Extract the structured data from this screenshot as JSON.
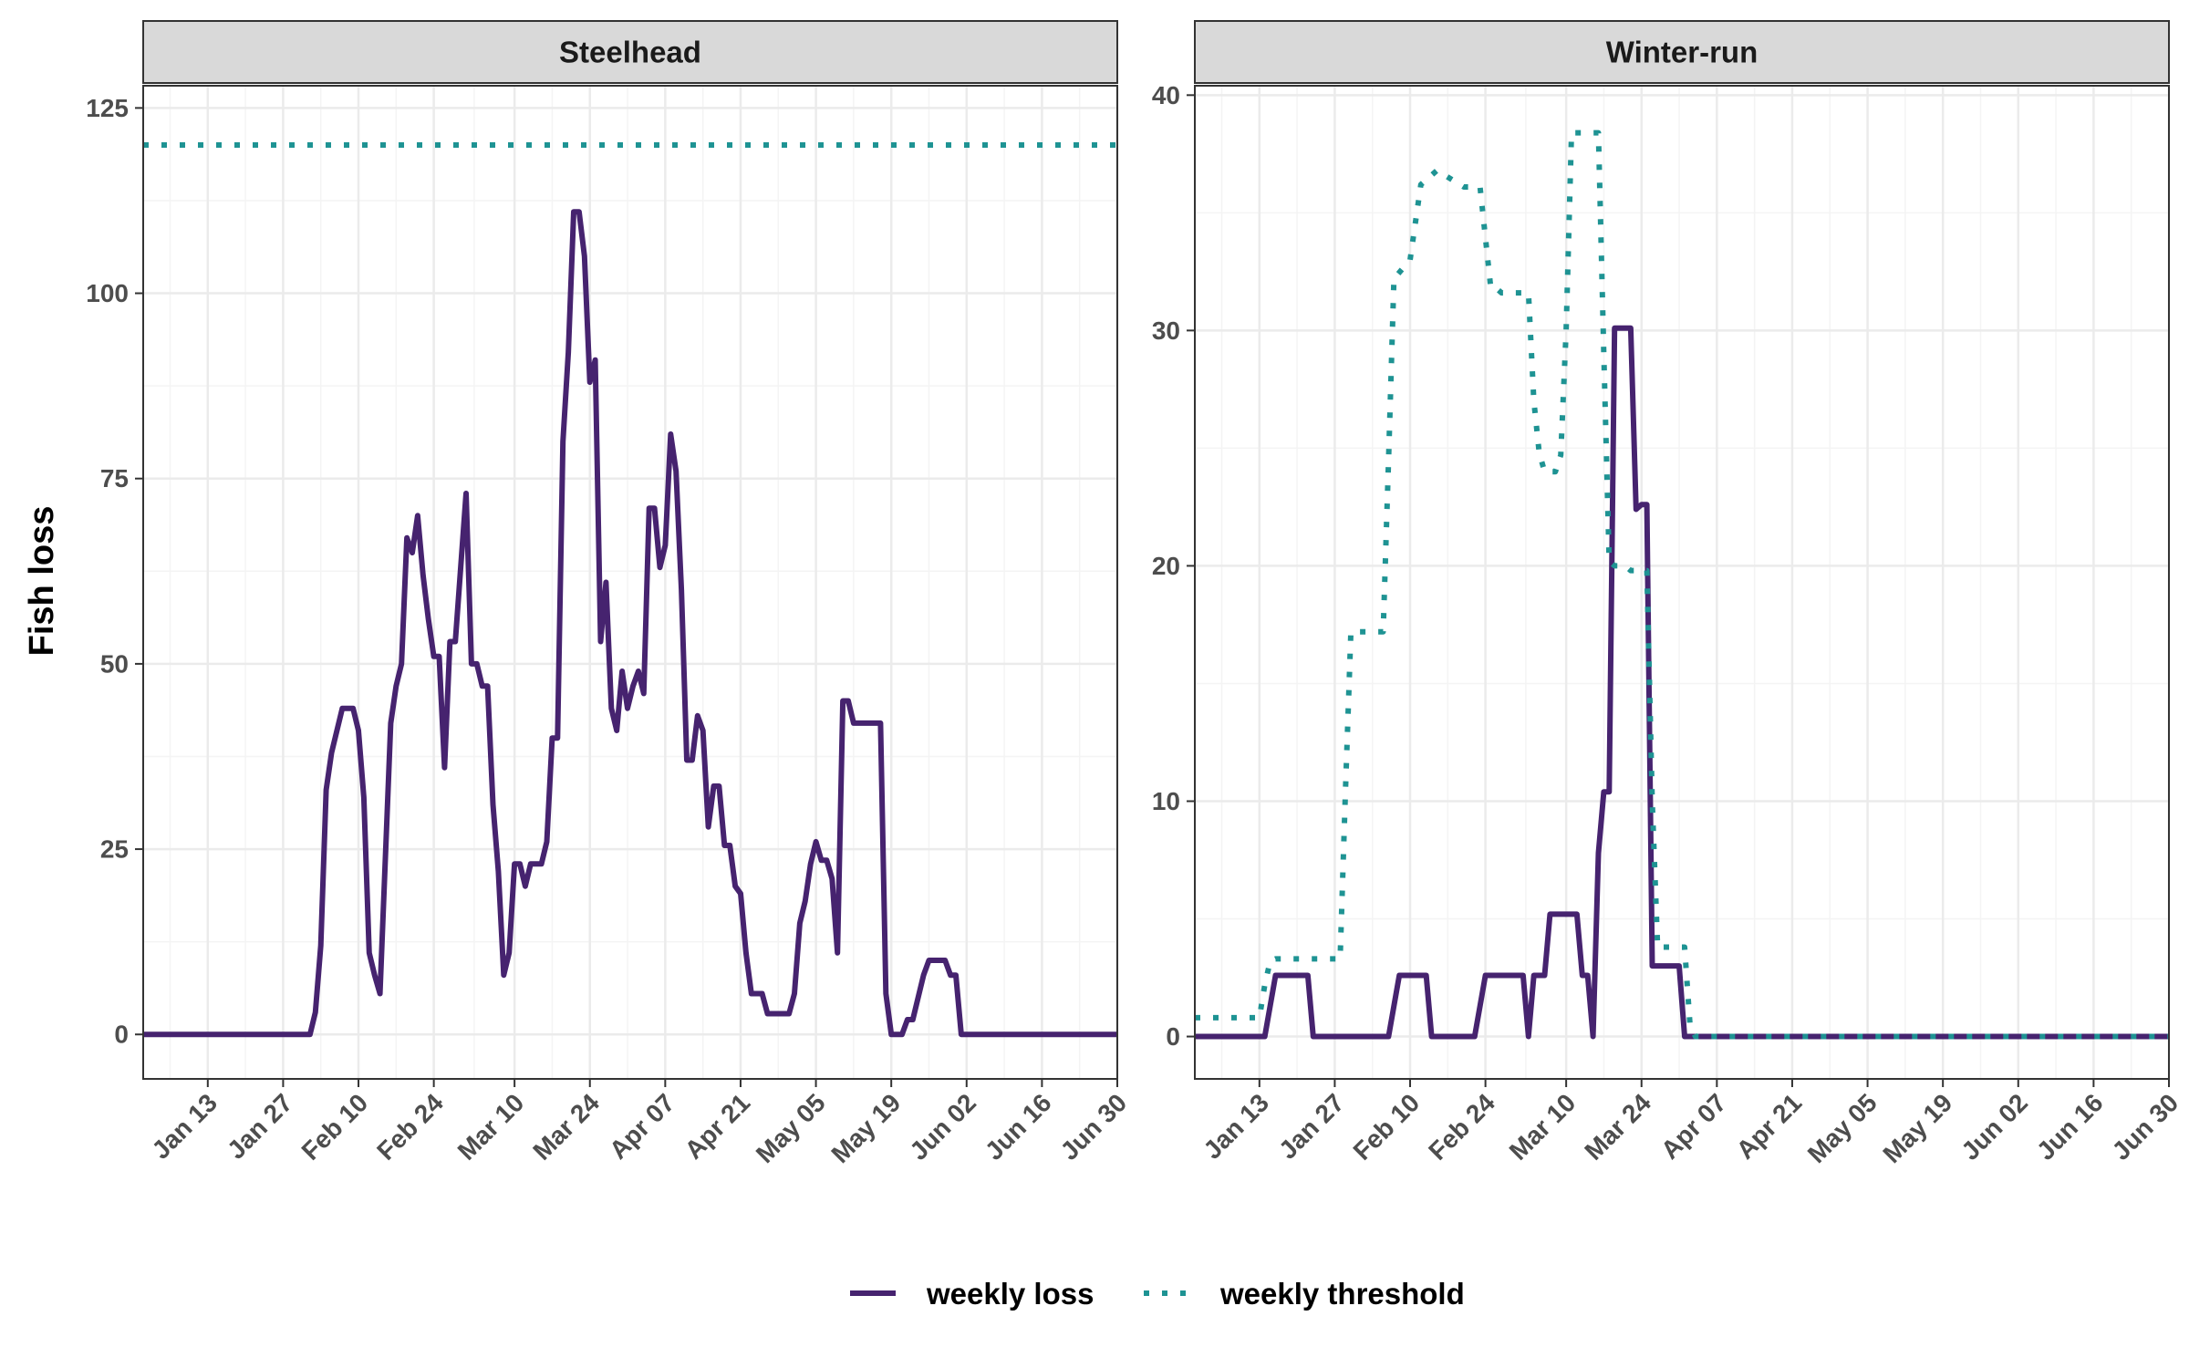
{
  "colors": {
    "loss": "#46236f",
    "threshold": "#1e9393",
    "grid_major": "#ebebeb",
    "grid_minor": "#f4f4f4",
    "strip_fill": "#d9d9d9",
    "panel_border": "#333333"
  },
  "figure": {
    "y_axis_label": "Fish loss",
    "legend": {
      "position": "bottom",
      "items": [
        {
          "label": "weekly loss",
          "style": "solid",
          "color": "#46236f"
        },
        {
          "label": "weekly threshold",
          "style": "dotted",
          "color": "#1e9393"
        }
      ]
    }
  },
  "x_tick_labels": [
    "Jan 13",
    "Jan 27",
    "Feb 10",
    "Feb 24",
    "Mar 10",
    "Mar 24",
    "Apr 07",
    "Apr 21",
    "May 05",
    "May 19",
    "Jun 02",
    "Jun 16",
    "Jun 30"
  ],
  "x_tick_dates": [
    "01-13",
    "01-27",
    "02-10",
    "02-24",
    "03-10",
    "03-24",
    "04-07",
    "04-21",
    "05-05",
    "05-19",
    "06-02",
    "06-16",
    "06-30"
  ],
  "chart_data": [
    {
      "type": "line",
      "title": "Steelhead",
      "xlabel": "",
      "ylabel": "Fish loss",
      "xlim": [
        "01-01",
        "06-30"
      ],
      "ylim": [
        -6,
        128
      ],
      "y_ticks": [
        0,
        25,
        50,
        75,
        100,
        125
      ],
      "y_tick_labels": [
        "0",
        "25",
        "50",
        "75",
        "100",
        "125"
      ],
      "grid": true,
      "series": [
        {
          "name": "weekly loss",
          "style": "solid",
          "x": [
            "01-01",
            "02-01",
            "02-02",
            "02-03",
            "02-04",
            "02-05",
            "02-07",
            "02-09",
            "02-10",
            "02-11",
            "02-12",
            "02-13",
            "02-14",
            "02-16",
            "02-17",
            "02-18",
            "02-19",
            "02-20",
            "02-21",
            "02-22",
            "02-23",
            "02-24",
            "02-25",
            "02-26",
            "02-27",
            "02-28",
            "03-01",
            "03-02",
            "03-03",
            "03-04",
            "03-05",
            "03-06",
            "03-07",
            "03-08",
            "03-09",
            "03-10",
            "03-11",
            "03-12",
            "03-13",
            "03-14",
            "03-15",
            "03-16",
            "03-17",
            "03-18",
            "03-19",
            "03-20",
            "03-21",
            "03-22",
            "03-23",
            "03-24",
            "03-25",
            "03-26",
            "03-27",
            "03-28",
            "03-29",
            "03-30",
            "03-31",
            "04-01",
            "04-02",
            "04-03",
            "04-04",
            "04-05",
            "04-06",
            "04-07",
            "04-08",
            "04-09",
            "04-10",
            "04-11",
            "04-12",
            "04-13",
            "04-14",
            "04-15",
            "04-16",
            "04-17",
            "04-18",
            "04-19",
            "04-20",
            "04-21",
            "04-22",
            "04-23",
            "04-24",
            "04-25",
            "04-26",
            "04-28",
            "04-30",
            "05-01",
            "05-02",
            "05-03",
            "05-04",
            "05-05",
            "05-06",
            "05-07",
            "05-08",
            "05-09",
            "05-10",
            "05-11",
            "05-12",
            "05-13",
            "05-14",
            "05-15",
            "05-17",
            "05-18",
            "05-19",
            "05-20",
            "05-21",
            "05-22",
            "05-23",
            "05-24",
            "05-25",
            "05-26",
            "05-27",
            "05-29",
            "05-30",
            "05-31",
            "06-01",
            "06-02",
            "06-30"
          ],
          "y": [
            0,
            0,
            3,
            12,
            33,
            38,
            44,
            44,
            41,
            32,
            11,
            8,
            5.5,
            42,
            47,
            50,
            67,
            65,
            70,
            62,
            56,
            51,
            51,
            36,
            53,
            53,
            73,
            50,
            50,
            47,
            47,
            31,
            22,
            8,
            11,
            23,
            23,
            20,
            23,
            23,
            23,
            26,
            40,
            40,
            80,
            92,
            111,
            111,
            105,
            88,
            91,
            53,
            61,
            44,
            41,
            49,
            44,
            47,
            49,
            46,
            71,
            71,
            63,
            66,
            81,
            76,
            60,
            37,
            37,
            43,
            41,
            28,
            33.5,
            33.5,
            25.5,
            25.5,
            20,
            19,
            11,
            5.5,
            5.5,
            5.5,
            2.8,
            2.8,
            2.8,
            5.5,
            15,
            18,
            23,
            26,
            23.5,
            23.5,
            21,
            11,
            45,
            45,
            42,
            42,
            42,
            42,
            42,
            5.5,
            0,
            0,
            0,
            2,
            2,
            5,
            8,
            10,
            10,
            10,
            8,
            8,
            0,
            0,
            0
          ]
        },
        {
          "name": "weekly threshold",
          "style": "dotted",
          "x": [
            "01-01",
            "06-30"
          ],
          "y": [
            120,
            120
          ]
        }
      ]
    },
    {
      "type": "line",
      "title": "Winter-run",
      "xlabel": "",
      "ylabel": "",
      "xlim": [
        "01-01",
        "06-30"
      ],
      "ylim": [
        -1.8,
        40.4
      ],
      "y_ticks": [
        0,
        10,
        20,
        30,
        40
      ],
      "y_tick_labels": [
        "0",
        "10",
        "20",
        "30",
        "40"
      ],
      "grid": true,
      "series": [
        {
          "name": "weekly loss",
          "style": "solid",
          "x": [
            "01-01",
            "01-14",
            "01-15",
            "01-16",
            "01-22",
            "01-23",
            "02-06",
            "02-07",
            "02-08",
            "02-13",
            "02-14",
            "02-22",
            "02-23",
            "02-24",
            "03-02",
            "03-03",
            "03-04",
            "03-06",
            "03-07",
            "03-08",
            "03-12",
            "03-13",
            "03-14",
            "03-15",
            "03-16",
            "03-17",
            "03-18",
            "03-19",
            "03-20",
            "03-21",
            "03-22",
            "03-23",
            "03-24",
            "03-25",
            "03-26",
            "03-27",
            "03-28",
            "03-29",
            "03-30",
            "03-31",
            "04-01",
            "04-02",
            "04-03",
            "04-04",
            "06-30"
          ],
          "y": [
            0,
            0,
            1.3,
            2.6,
            2.6,
            0,
            0,
            1.3,
            2.6,
            2.6,
            0,
            0,
            1.3,
            2.6,
            2.6,
            0,
            2.6,
            2.6,
            5.2,
            5.2,
            5.2,
            2.6,
            2.6,
            0,
            7.8,
            10.4,
            10.4,
            30.1,
            30.1,
            30.1,
            30.1,
            22.4,
            22.6,
            22.6,
            3,
            3,
            3,
            3,
            3,
            3,
            0,
            0,
            0,
            0,
            0
          ]
        },
        {
          "name": "weekly threshold",
          "style": "dotted",
          "x": [
            "01-01",
            "01-13",
            "01-14",
            "01-15",
            "01-16",
            "01-28",
            "01-29",
            "01-30",
            "02-05",
            "02-06",
            "02-07",
            "02-10",
            "02-12",
            "02-15",
            "02-20",
            "02-23",
            "02-25",
            "02-26",
            "02-27",
            "03-03",
            "03-04",
            "03-05",
            "03-06",
            "03-08",
            "03-09",
            "03-10",
            "03-11",
            "03-12",
            "03-15",
            "03-16",
            "03-17",
            "03-18",
            "03-19",
            "03-20",
            "03-21",
            "03-22",
            "03-25",
            "03-26",
            "03-27",
            "04-01",
            "04-02",
            "04-03",
            "04-04",
            "06-30"
          ],
          "y": [
            0.8,
            0.8,
            2.2,
            3.2,
            3.3,
            3.3,
            10.5,
            17.2,
            17.2,
            24.5,
            32.2,
            33,
            36.2,
            36.8,
            36.1,
            36.1,
            31.8,
            31.8,
            31.6,
            31.6,
            27,
            24.8,
            24,
            24,
            24.7,
            30,
            38.4,
            38.4,
            38.4,
            38.4,
            29,
            20.2,
            20,
            20,
            20,
            19.8,
            19.8,
            10,
            3.8,
            3.8,
            0.5,
            0,
            0,
            0
          ]
        }
      ]
    }
  ]
}
